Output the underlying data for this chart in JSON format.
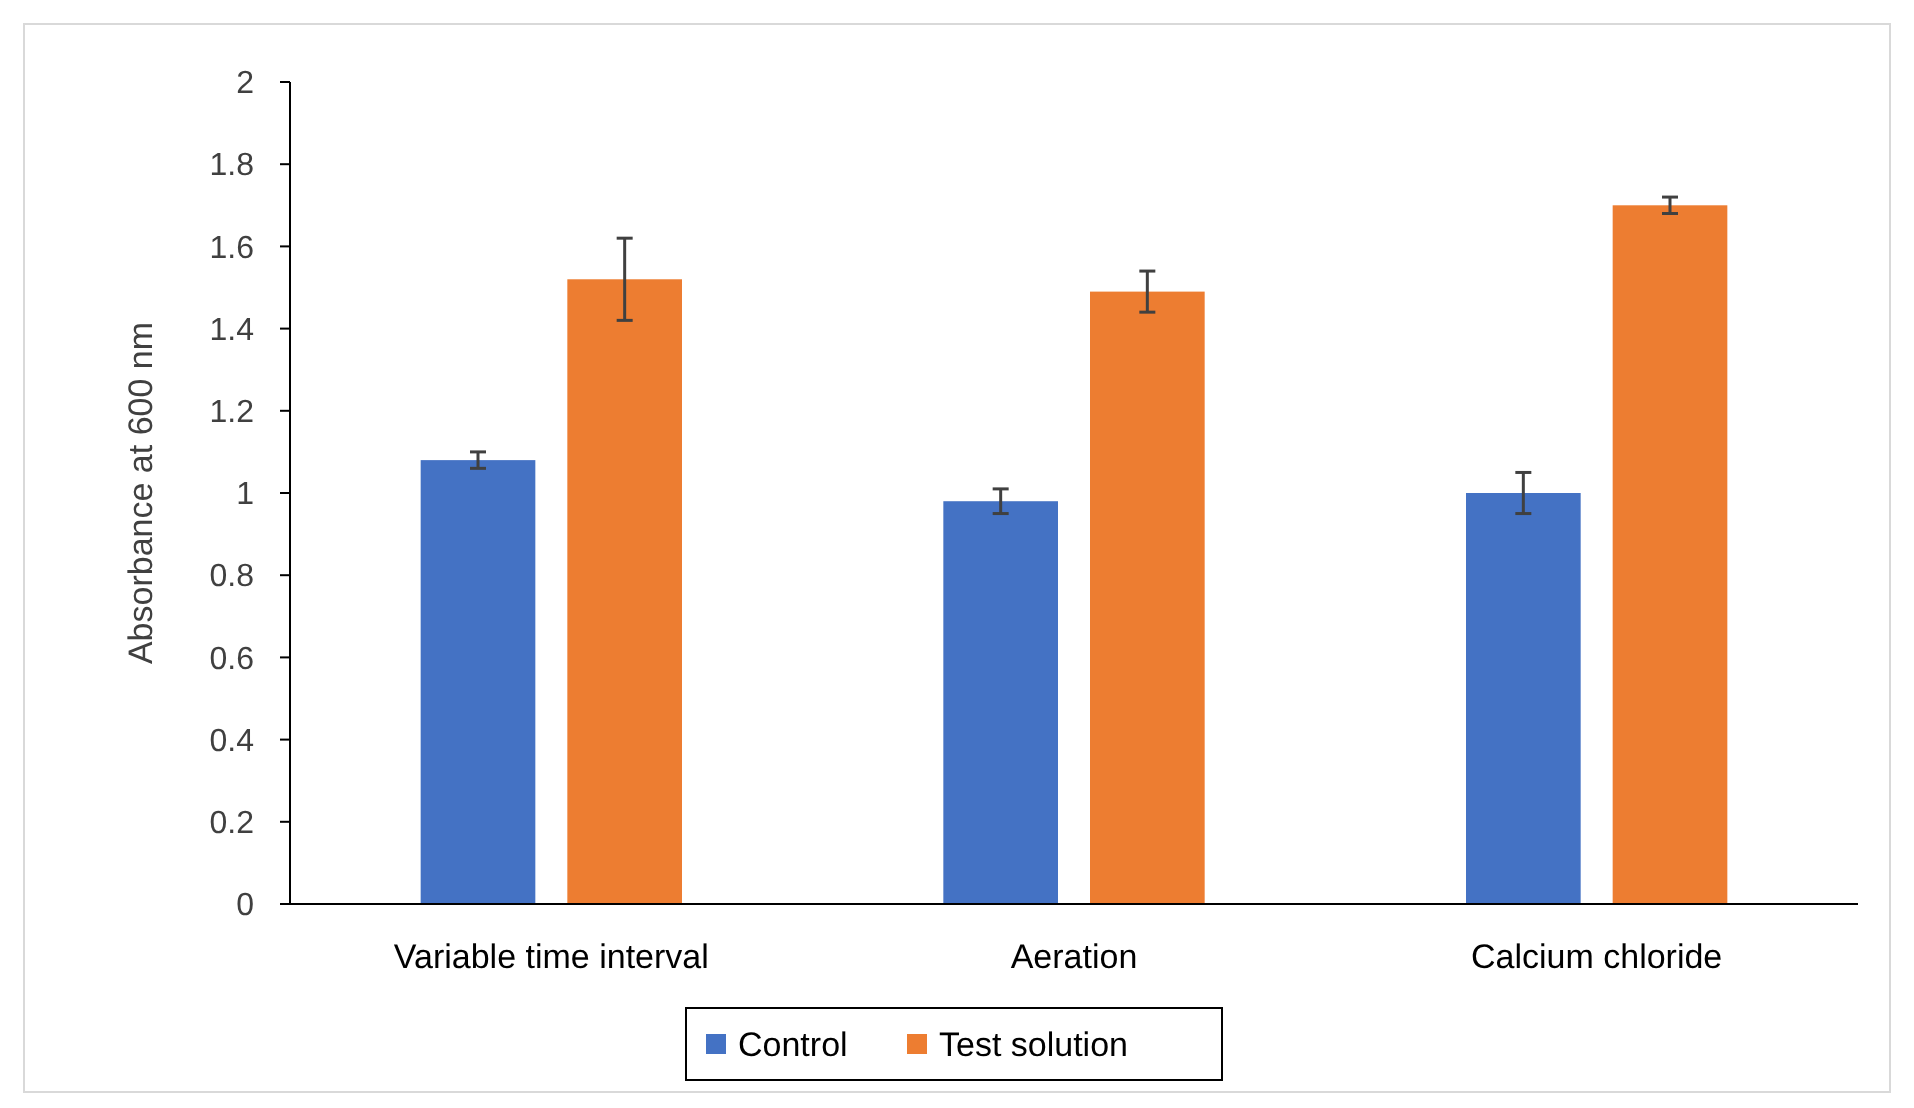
{
  "chart_data": {
    "type": "bar",
    "ylabel": "Absorbance at 600 nm",
    "categories": [
      "Variable time interval",
      "Aeration",
      "Calcium chloride"
    ],
    "series": [
      {
        "name": "Control",
        "color": "#4472c4",
        "values": [
          1.08,
          0.98,
          1.0
        ],
        "errors": [
          0.02,
          0.03,
          0.05
        ]
      },
      {
        "name": "Test solution",
        "color": "#ed7d31",
        "values": [
          1.52,
          1.49,
          1.7
        ],
        "errors": [
          0.1,
          0.05,
          0.02
        ]
      }
    ],
    "ylim": [
      0,
      2
    ],
    "yticks": [
      0,
      0.2,
      0.4,
      0.6,
      0.8,
      1,
      1.2,
      1.4,
      1.6,
      1.8,
      2
    ],
    "grid": false,
    "legend": "bottom"
  }
}
